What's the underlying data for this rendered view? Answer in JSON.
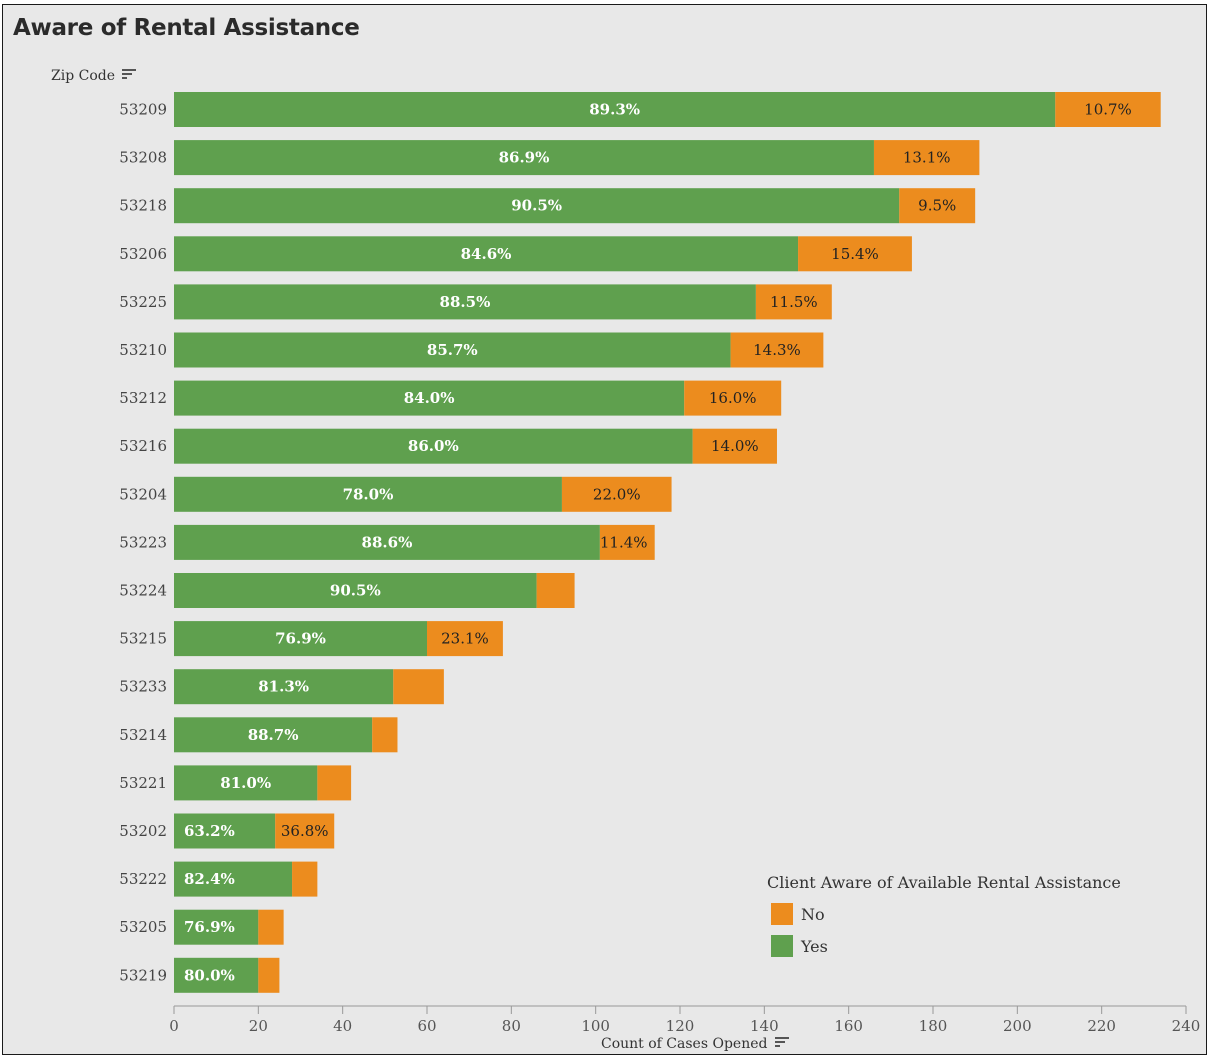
{
  "title": "Aware of Rental Assistance",
  "y_axis_header": "Zip Code",
  "x_axis_title": "Count of Cases Opened",
  "colors": {
    "yes": "#5fa04e",
    "no": "#ec8c1e",
    "background": "#e8e8e8",
    "label_on_yes": "#ffffff",
    "label_on_no": "#222222"
  },
  "legend": {
    "title": "Client Aware of Available Rental Assistance",
    "items": [
      {
        "label": "No",
        "color": "#ec8c1e"
      },
      {
        "label": "Yes",
        "color": "#5fa04e"
      }
    ]
  },
  "chart_data": {
    "type": "bar",
    "orientation": "horizontal",
    "stacked": true,
    "title": "Aware of Rental Assistance",
    "xlabel": "Count of Cases Opened",
    "ylabel": "Zip Code",
    "xlim": [
      0,
      240
    ],
    "xticks": [
      0,
      20,
      40,
      60,
      80,
      100,
      120,
      140,
      160,
      180,
      200,
      220,
      240
    ],
    "grid": false,
    "legend_position": "bottom-right",
    "categories": [
      "53209",
      "53208",
      "53218",
      "53206",
      "53225",
      "53210",
      "53212",
      "53216",
      "53204",
      "53223",
      "53224",
      "53215",
      "53233",
      "53214",
      "53221",
      "53202",
      "53222",
      "53205",
      "53219"
    ],
    "series": [
      {
        "name": "Yes",
        "values": [
          209,
          166,
          172,
          148,
          138,
          132,
          121,
          123,
          92,
          101,
          86,
          60,
          52,
          47,
          34,
          24,
          28,
          20,
          20
        ],
        "labels": [
          "89.3%",
          "86.9%",
          "90.5%",
          "84.6%",
          "88.5%",
          "85.7%",
          "84.0%",
          "86.0%",
          "78.0%",
          "88.6%",
          "90.5%",
          "76.9%",
          "81.3%",
          "88.7%",
          "81.0%",
          "63.2%",
          "82.4%",
          "76.9%",
          "80.0%"
        ]
      },
      {
        "name": "No",
        "values": [
          25,
          25,
          18,
          27,
          18,
          22,
          23,
          20,
          26,
          13,
          9,
          18,
          12,
          6,
          8,
          14,
          6,
          6,
          5
        ],
        "labels": [
          "10.7%",
          "13.1%",
          "9.5%",
          "15.4%",
          "11.5%",
          "14.3%",
          "16.0%",
          "14.0%",
          "22.0%",
          "11.4%",
          "",
          "23.1%",
          "",
          "",
          "",
          "36.8%",
          "",
          "",
          ""
        ]
      }
    ]
  }
}
